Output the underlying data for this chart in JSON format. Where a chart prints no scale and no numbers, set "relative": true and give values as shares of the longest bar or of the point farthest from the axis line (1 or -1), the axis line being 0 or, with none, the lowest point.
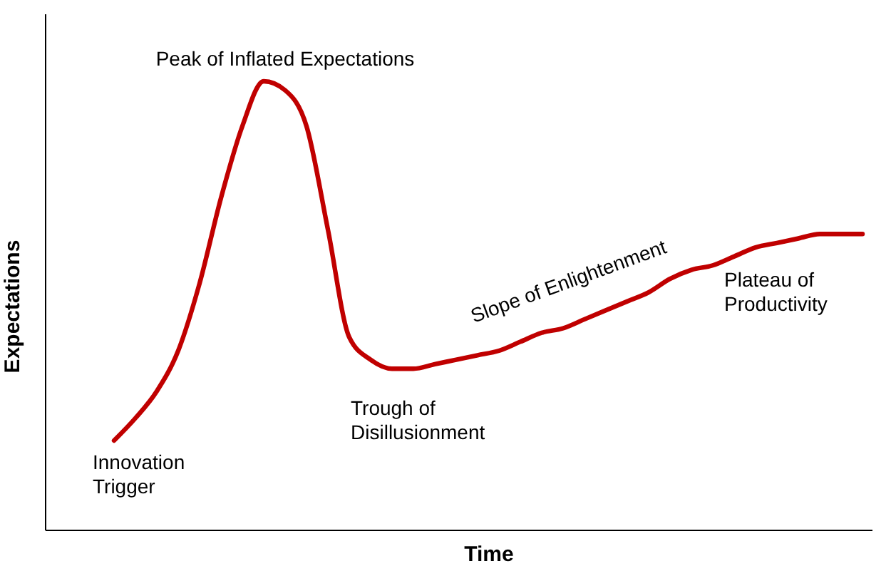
{
  "chart_data": {
    "type": "line",
    "relative": true,
    "xlabel": "Time",
    "ylabel": "Expectations",
    "categories": [
      null,
      null,
      null,
      null,
      null,
      null,
      null,
      null,
      null,
      null,
      null,
      null,
      null,
      null,
      null,
      null,
      null,
      null,
      null,
      null,
      null,
      null,
      null,
      null,
      null,
      null,
      null,
      null,
      null,
      null,
      null,
      null,
      null,
      null,
      null,
      null
    ],
    "series": [
      {
        "color": "#c00000",
        "values": [
          0.2,
          0.25,
          0.31,
          0.4,
          0.55,
          0.74,
          0.9,
          1,
          0.98,
          0.9,
          0.67,
          0.43,
          0.38,
          0.36,
          0.36,
          0.37,
          0.38,
          0.39,
          0.4,
          0.42,
          0.44,
          0.45,
          0.47,
          0.49,
          0.51,
          0.53,
          0.56,
          0.58,
          0.59,
          0.61,
          0.63,
          0.64,
          0.65,
          0.66,
          0.66,
          0.66
        ]
      }
    ],
    "annotations": [
      "Peak of Inflated Expectations",
      "Innovation Trigger",
      "Trough of Disillusionment",
      "Slope of Enlightenment",
      "Plateau of Productivity"
    ],
    "grid": false,
    "marker": "none",
    "line_style": "solid"
  }
}
